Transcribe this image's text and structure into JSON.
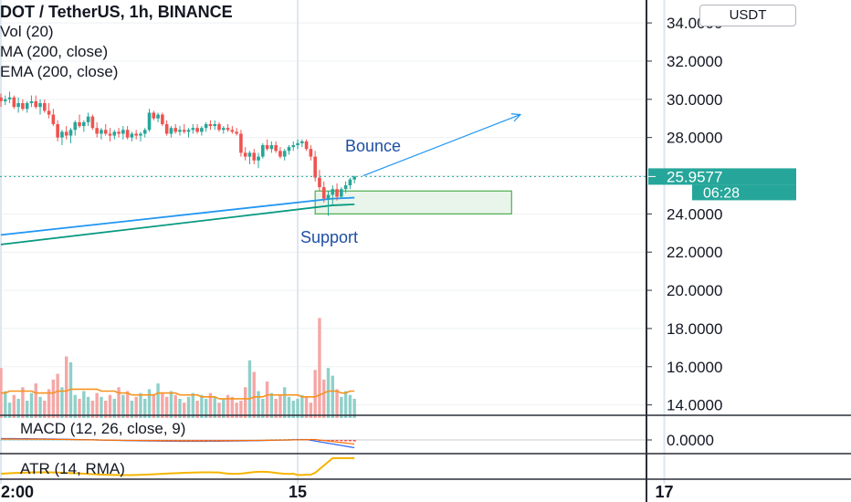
{
  "header": {
    "symbol_title": "DOT / TetherUS, 1h, BINANCE",
    "indicators": [
      "Vol (20)",
      "MA (200, close)",
      "EMA (200, close)"
    ],
    "currency_button": "USDT"
  },
  "panes": {
    "macd_label": "MACD (12, 26, close, 9)",
    "macd_axis_value": "0.0000",
    "atr_label": "ATR (14, RMA)"
  },
  "colors": {
    "up": "#26a69a",
    "down": "#ef5350",
    "up_volume": "#8fd0c9",
    "down_volume": "#f4a7a6",
    "ma": "#2196f3",
    "ema": "#089981",
    "vol_ma": "#f7931e",
    "atr": "#f5b400",
    "price_label": "#26a69a",
    "annotation": "#2962ff"
  },
  "chart_data": {
    "type": "candlestick",
    "title": "DOT / TetherUS, 1h, BINANCE",
    "y_axis_ticks": [
      "34.0000",
      "32.0000",
      "30.0000",
      "28.0000",
      "24.0000",
      "22.0000",
      "20.0000",
      "18.0000",
      "16.0000",
      "14.0000"
    ],
    "ylim": [
      13.6,
      35.2
    ],
    "x_axis_ticks": [
      {
        "label": "2:00",
        "index": 0
      },
      {
        "label": "15",
        "index": 68
      },
      {
        "label": "17",
        "index": 152
      }
    ],
    "last_price": "25.9577",
    "countdown": "06:28",
    "ohlc": [
      [
        30.1,
        30.3,
        29.6,
        29.9
      ],
      [
        29.9,
        30.2,
        29.7,
        30.0
      ],
      [
        30.0,
        30.4,
        29.8,
        30.1
      ],
      [
        30.1,
        30.2,
        29.5,
        29.6
      ],
      [
        29.6,
        30.1,
        29.3,
        29.8
      ],
      [
        29.8,
        30.0,
        29.4,
        29.5
      ],
      [
        29.5,
        29.9,
        29.3,
        29.8
      ],
      [
        29.8,
        30.2,
        29.6,
        29.9
      ],
      [
        29.9,
        30.2,
        29.5,
        29.6
      ],
      [
        29.6,
        30.0,
        29.2,
        29.8
      ],
      [
        29.8,
        30.0,
        29.3,
        29.4
      ],
      [
        29.4,
        29.8,
        29.0,
        29.2
      ],
      [
        29.2,
        29.5,
        28.6,
        28.7
      ],
      [
        28.7,
        28.9,
        27.8,
        28.0
      ],
      [
        28.0,
        28.4,
        27.6,
        28.3
      ],
      [
        28.3,
        28.6,
        27.9,
        28.1
      ],
      [
        28.1,
        28.5,
        27.7,
        28.4
      ],
      [
        28.4,
        28.9,
        28.1,
        28.8
      ],
      [
        28.8,
        29.2,
        28.5,
        28.6
      ],
      [
        28.6,
        28.9,
        28.3,
        28.8
      ],
      [
        28.8,
        29.3,
        28.6,
        29.1
      ],
      [
        29.1,
        29.2,
        28.4,
        28.5
      ],
      [
        28.5,
        28.8,
        28.0,
        28.2
      ],
      [
        28.2,
        28.5,
        27.9,
        28.4
      ],
      [
        28.4,
        28.7,
        28.1,
        28.2
      ],
      [
        28.2,
        28.5,
        27.8,
        28.1
      ],
      [
        28.1,
        28.4,
        27.9,
        28.3
      ],
      [
        28.3,
        28.5,
        28.0,
        28.2
      ],
      [
        28.2,
        28.6,
        27.9,
        28.4
      ],
      [
        28.4,
        28.6,
        27.9,
        28.0
      ],
      [
        28.0,
        28.3,
        27.8,
        28.2
      ],
      [
        28.2,
        28.4,
        27.9,
        28.1
      ],
      [
        28.1,
        28.3,
        27.8,
        28.2
      ],
      [
        28.2,
        28.5,
        28.0,
        28.4
      ],
      [
        28.4,
        29.5,
        28.3,
        29.3
      ],
      [
        29.3,
        29.4,
        28.9,
        29.0
      ],
      [
        29.0,
        29.3,
        28.8,
        29.2
      ],
      [
        29.2,
        29.3,
        28.6,
        28.7
      ],
      [
        28.7,
        28.9,
        28.1,
        28.2
      ],
      [
        28.2,
        28.6,
        28.0,
        28.5
      ],
      [
        28.5,
        28.7,
        28.2,
        28.3
      ],
      [
        28.3,
        28.6,
        28.1,
        28.4
      ],
      [
        28.4,
        28.7,
        28.2,
        28.3
      ],
      [
        28.3,
        28.5,
        28.0,
        28.4
      ],
      [
        28.4,
        28.7,
        28.2,
        28.5
      ],
      [
        28.5,
        28.7,
        28.2,
        28.3
      ],
      [
        28.3,
        28.6,
        28.1,
        28.5
      ],
      [
        28.5,
        28.8,
        28.3,
        28.7
      ],
      [
        28.7,
        28.9,
        28.4,
        28.6
      ],
      [
        28.6,
        28.9,
        28.4,
        28.7
      ],
      [
        28.7,
        28.8,
        28.3,
        28.4
      ],
      [
        28.4,
        28.6,
        28.2,
        28.5
      ],
      [
        28.5,
        28.7,
        28.3,
        28.4
      ],
      [
        28.4,
        28.6,
        28.2,
        28.3
      ],
      [
        28.3,
        28.5,
        28.1,
        28.2
      ],
      [
        28.2,
        28.4,
        27.0,
        27.2
      ],
      [
        27.2,
        27.5,
        26.8,
        27.0
      ],
      [
        27.0,
        27.3,
        26.6,
        27.2
      ],
      [
        27.2,
        27.4,
        26.6,
        26.8
      ],
      [
        26.8,
        27.2,
        26.4,
        27.0
      ],
      [
        27.0,
        27.7,
        26.9,
        27.6
      ],
      [
        27.6,
        27.9,
        27.3,
        27.4
      ],
      [
        27.4,
        27.8,
        27.2,
        27.6
      ],
      [
        27.6,
        27.8,
        27.2,
        27.3
      ],
      [
        27.3,
        27.5,
        26.9,
        27.0
      ],
      [
        27.0,
        27.4,
        26.8,
        27.3
      ],
      [
        27.3,
        27.6,
        27.1,
        27.5
      ],
      [
        27.5,
        27.8,
        27.3,
        27.6
      ],
      [
        27.6,
        27.9,
        27.4,
        27.7
      ],
      [
        27.7,
        27.9,
        27.5,
        27.8
      ],
      [
        27.8,
        27.9,
        27.3,
        27.4
      ],
      [
        27.4,
        27.6,
        26.8,
        27.0
      ],
      [
        27.0,
        27.3,
        25.7,
        25.9
      ],
      [
        25.9,
        26.3,
        25.2,
        25.4
      ],
      [
        25.4,
        25.7,
        24.6,
        24.8
      ],
      [
        24.8,
        25.2,
        23.9,
        25.0
      ],
      [
        25.0,
        25.5,
        24.5,
        25.3
      ],
      [
        25.3,
        25.6,
        24.7,
        24.9
      ],
      [
        24.9,
        25.4,
        24.8,
        25.3
      ],
      [
        25.3,
        25.7,
        25.1,
        25.5
      ],
      [
        25.5,
        25.9,
        25.3,
        25.8
      ],
      [
        25.8,
        26.0,
        25.6,
        25.96
      ]
    ],
    "volume": [
      16.6,
      15.4,
      14.8,
      15.2,
      15.0,
      15.6,
      14.9,
      15.3,
      15.8,
      15.1,
      14.9,
      15.5,
      16.0,
      16.3,
      15.6,
      17.2,
      16.9,
      15.2,
      15.0,
      15.4,
      15.1,
      14.9,
      15.3,
      15.1,
      14.9,
      15.2,
      15.0,
      15.6,
      15.2,
      15.4,
      14.9,
      15.1,
      15.3,
      15.0,
      15.5,
      15.2,
      15.8,
      15.3,
      15.1,
      15.4,
      15.2,
      15.0,
      14.8,
      15.1,
      15.3,
      14.9,
      15.2,
      15.0,
      15.3,
      15.1,
      14.8,
      15.0,
      15.2,
      15.1,
      14.8,
      14.9,
      15.6,
      17.0,
      16.4,
      15.4,
      15.0,
      15.9,
      15.3,
      15.0,
      15.2,
      15.6,
      15.1,
      14.9,
      15.0,
      15.2,
      15.1,
      14.8,
      16.5,
      19.2,
      16.0,
      16.6,
      16.2,
      15.5,
      15.1,
      15.4,
      15.2,
      15.0
    ],
    "volume_ylim": [
      14.0,
      19.6
    ],
    "vol_ma": [
      15.3,
      15.3,
      15.4,
      15.4,
      15.4,
      15.4,
      15.4,
      15.4,
      15.3,
      15.3,
      15.3,
      15.3,
      15.3,
      15.4,
      15.4,
      15.4,
      15.5,
      15.5,
      15.5,
      15.5,
      15.5,
      15.5,
      15.5,
      15.4,
      15.4,
      15.4,
      15.4,
      15.3,
      15.3,
      15.3,
      15.2,
      15.2,
      15.2,
      15.2,
      15.2,
      15.2,
      15.3,
      15.3,
      15.3,
      15.3,
      15.3,
      15.2,
      15.2,
      15.2,
      15.2,
      15.2,
      15.1,
      15.1,
      15.1,
      15.1,
      15.0,
      15.0,
      15.0,
      15.0,
      15.0,
      15.0,
      15.0,
      15.0,
      15.1,
      15.1,
      15.1,
      15.2,
      15.2,
      15.2,
      15.2,
      15.2,
      15.2,
      15.2,
      15.2,
      15.1,
      15.1,
      15.1,
      15.1,
      15.2,
      15.3,
      15.4,
      15.4,
      15.4,
      15.3,
      15.3,
      15.4,
      15.4
    ],
    "ma200_endpoints": [
      [
        0,
        22.9
      ],
      [
        76,
        24.8
      ],
      [
        81,
        24.85
      ]
    ],
    "ema200_endpoints": [
      [
        0,
        22.4
      ],
      [
        76,
        24.45
      ],
      [
        81,
        24.5
      ]
    ],
    "annotations": {
      "bounce_label": "Bounce",
      "support_label": "Support",
      "support_zone": {
        "from_index": 72,
        "to_index": 117,
        "low": 24.0,
        "high": 25.2
      },
      "arrow": {
        "from": [
          83,
          26.0
        ],
        "to": [
          119,
          29.2
        ]
      }
    }
  }
}
